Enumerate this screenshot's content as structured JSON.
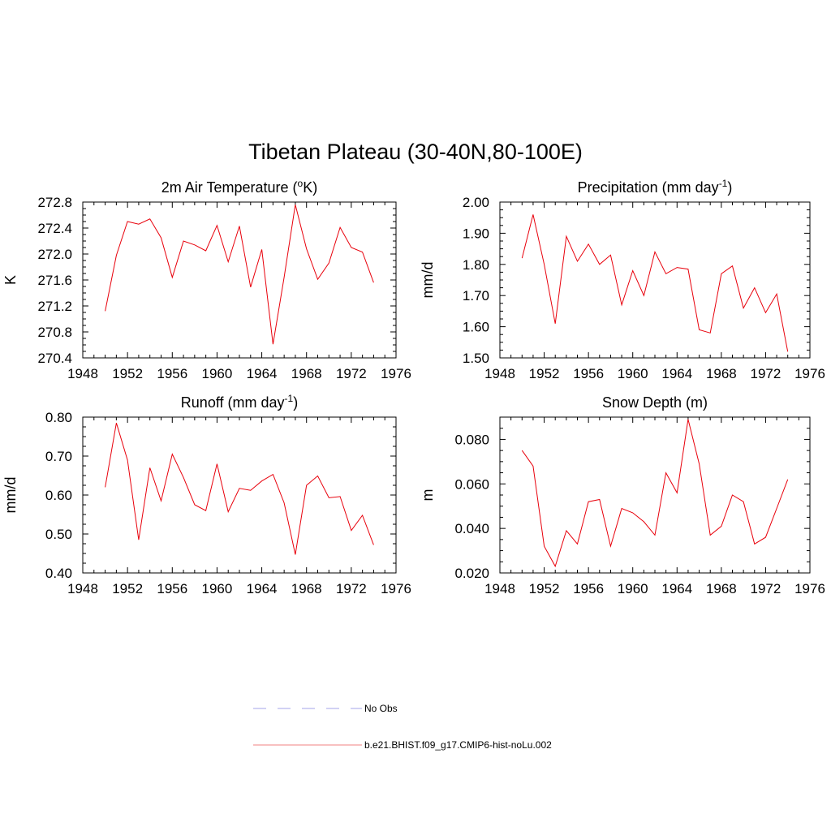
{
  "figure": {
    "title": "Tibetan Plateau (30-40N,80-100E)"
  },
  "legend": {
    "entries": [
      {
        "label": "No Obs",
        "style": "dashed",
        "color": "#a6a6e8"
      },
      {
        "label": "b.e21.BHIST.f09_g17.CMIP6-hist-noLu.002",
        "style": "solid",
        "color": "#f08080"
      }
    ]
  },
  "chart_data": [
    {
      "type": "line",
      "title_main": "2m Air Temperature (",
      "title_sup": "o",
      "title_tail": "K)",
      "ylabel": "K",
      "xlim": [
        1948,
        1976
      ],
      "ylim": [
        270.4,
        272.8
      ],
      "xticks": [
        "1948",
        "1952",
        "1956",
        "1960",
        "1964",
        "1968",
        "1972",
        "1976"
      ],
      "yticks": [
        "270.4",
        "270.8",
        "271.2",
        "271.6",
        "272.0",
        "272.4",
        "272.8"
      ],
      "x": [
        1950,
        1951,
        1952,
        1953,
        1954,
        1955,
        1956,
        1957,
        1958,
        1959,
        1960,
        1961,
        1962,
        1963,
        1964,
        1965,
        1966,
        1967,
        1968,
        1969,
        1970,
        1971,
        1972,
        1973,
        1974
      ],
      "series": [
        {
          "color": "#e8000b",
          "values": [
            271.12,
            271.98,
            272.5,
            272.46,
            272.54,
            272.25,
            271.64,
            272.2,
            272.14,
            272.05,
            272.44,
            271.88,
            272.43,
            271.49,
            272.07,
            270.61,
            271.64,
            272.76,
            272.08,
            271.61,
            271.86,
            272.41,
            272.1,
            272.03,
            271.56
          ]
        }
      ]
    },
    {
      "type": "line",
      "title_main": "Precipitation (mm day",
      "title_sup": "-1",
      "title_tail": ")",
      "ylabel": "mm/d",
      "xlim": [
        1948,
        1976
      ],
      "ylim": [
        1.5,
        2.0
      ],
      "xticks": [
        "1948",
        "1952",
        "1956",
        "1960",
        "1964",
        "1968",
        "1972",
        "1976"
      ],
      "yticks": [
        "1.50",
        "1.60",
        "1.70",
        "1.80",
        "1.90",
        "2.00"
      ],
      "x": [
        1950,
        1951,
        1952,
        1953,
        1954,
        1955,
        1956,
        1957,
        1958,
        1959,
        1960,
        1961,
        1962,
        1963,
        1964,
        1965,
        1966,
        1967,
        1968,
        1969,
        1970,
        1971,
        1972,
        1973,
        1974
      ],
      "series": [
        {
          "color": "#e8000b",
          "values": [
            1.82,
            1.96,
            1.8,
            1.61,
            1.89,
            1.81,
            1.865,
            1.8,
            1.83,
            1.67,
            1.78,
            1.7,
            1.84,
            1.77,
            1.79,
            1.785,
            1.59,
            1.58,
            1.77,
            1.795,
            1.66,
            1.725,
            1.645,
            1.705,
            1.52
          ]
        }
      ]
    },
    {
      "type": "line",
      "title_main": "Runoff (mm day",
      "title_sup": "-1",
      "title_tail": ")",
      "ylabel": "mm/d",
      "xlim": [
        1948,
        1976
      ],
      "ylim": [
        0.4,
        0.8
      ],
      "xticks": [
        "1948",
        "1952",
        "1956",
        "1960",
        "1964",
        "1968",
        "1972",
        "1976"
      ],
      "yticks": [
        "0.40",
        "0.50",
        "0.60",
        "0.70",
        "0.80"
      ],
      "x": [
        1950,
        1951,
        1952,
        1953,
        1954,
        1955,
        1956,
        1957,
        1958,
        1959,
        1960,
        1961,
        1962,
        1963,
        1964,
        1965,
        1966,
        1967,
        1968,
        1969,
        1970,
        1971,
        1972,
        1973,
        1974
      ],
      "series": [
        {
          "color": "#e8000b",
          "values": [
            0.62,
            0.785,
            0.69,
            0.485,
            0.67,
            0.585,
            0.705,
            0.645,
            0.575,
            0.56,
            0.68,
            0.557,
            0.617,
            0.612,
            0.636,
            0.653,
            0.58,
            0.447,
            0.625,
            0.649,
            0.593,
            0.596,
            0.509,
            0.548,
            0.472
          ]
        }
      ]
    },
    {
      "type": "line",
      "title_main": "Snow Depth (m)",
      "title_sup": "",
      "title_tail": "",
      "ylabel": "m",
      "xlim": [
        1948,
        1976
      ],
      "ylim": [
        0.02,
        0.09
      ],
      "xticks": [
        "1948",
        "1952",
        "1956",
        "1960",
        "1964",
        "1968",
        "1972",
        "1976"
      ],
      "yticks": [
        "0.020",
        "0.040",
        "0.060",
        "0.080"
      ],
      "ytick_values": [
        0.02,
        0.04,
        0.06,
        0.08
      ],
      "x": [
        1950,
        1951,
        1952,
        1953,
        1954,
        1955,
        1956,
        1957,
        1958,
        1959,
        1960,
        1961,
        1962,
        1963,
        1964,
        1965,
        1966,
        1967,
        1968,
        1969,
        1970,
        1971,
        1972,
        1973,
        1974
      ],
      "series": [
        {
          "color": "#e8000b",
          "values": [
            0.075,
            0.068,
            0.032,
            0.023,
            0.039,
            0.033,
            0.052,
            0.053,
            0.032,
            0.049,
            0.047,
            0.043,
            0.037,
            0.065,
            0.056,
            0.089,
            0.069,
            0.037,
            0.041,
            0.055,
            0.052,
            0.033,
            0.036,
            0.049,
            0.062
          ]
        }
      ]
    }
  ]
}
